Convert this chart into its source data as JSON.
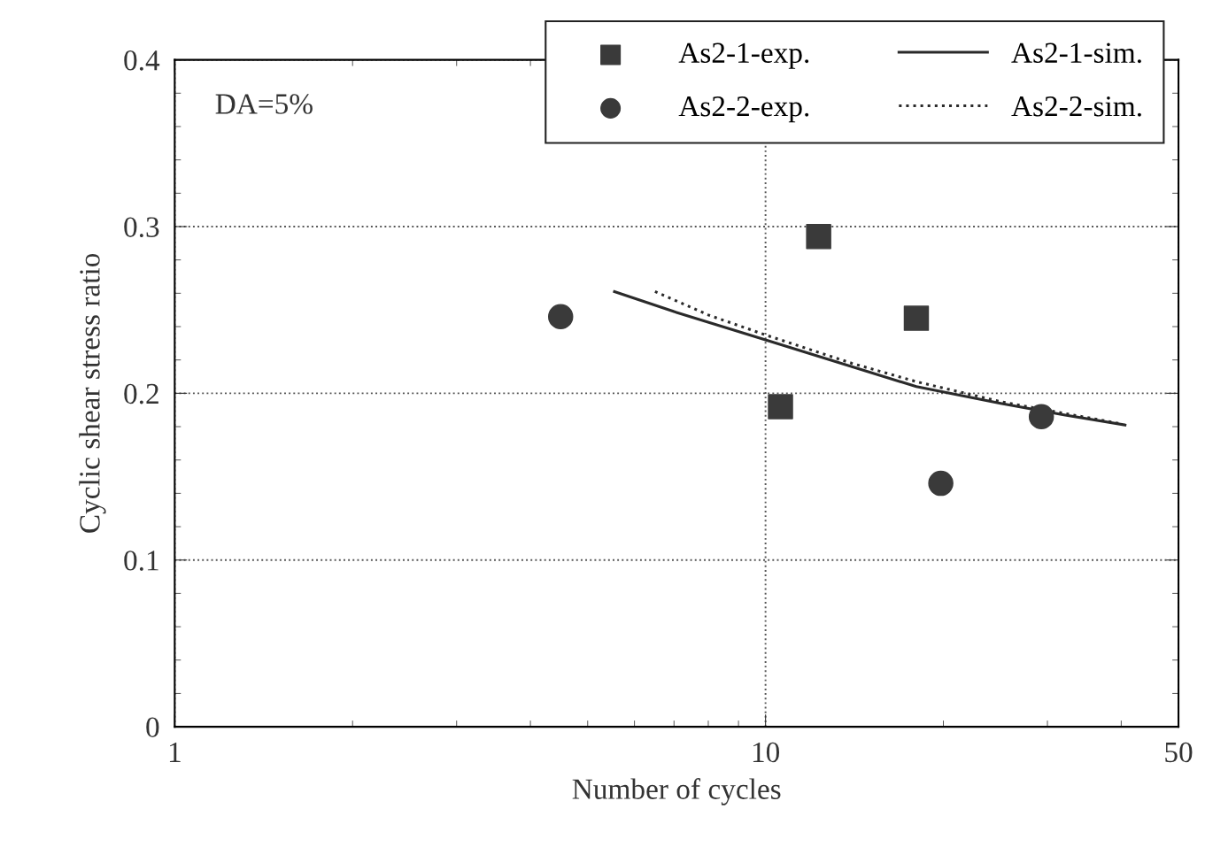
{
  "chart_data": {
    "type": "scatter",
    "xlabel": "Number of cycles",
    "ylabel": "Cyclic shear stress ratio",
    "annotations": [
      "DA=5%"
    ],
    "log": "x",
    "xlim": [
      1,
      50
    ],
    "xticks": [
      1,
      10,
      50
    ],
    "ylim": [
      0,
      0.4
    ],
    "yticks": [
      0,
      0.1,
      0.2,
      0.3,
      0.4
    ],
    "grid": true,
    "legend": "top right",
    "series": [
      {
        "name": "As2-1-exp.",
        "marker": "square",
        "color": "#3a3a3a",
        "x": [
          10.6,
          12.3,
          18.0
        ],
        "values": [
          0.192,
          0.294,
          0.245
        ]
      },
      {
        "name": "As2-2-exp.",
        "marker": "circle",
        "color": "#3a3a3a",
        "x": [
          4.5,
          19.8,
          29.3
        ],
        "values": [
          0.246,
          0.146,
          0.186
        ]
      },
      {
        "name": "As2-1-sim.",
        "type": "line",
        "line_style": "solid",
        "color": "#2a2a2a",
        "x": [
          5.55,
          7,
          10,
          14,
          18,
          25,
          32,
          40.6
        ],
        "values": [
          0.261,
          0.249,
          0.232,
          0.216,
          0.204,
          0.194,
          0.187,
          0.181
        ]
      },
      {
        "name": "As2-2-sim.",
        "type": "line",
        "line_style": "dotted",
        "color": "#2a2a2a",
        "x": [
          6.5,
          8,
          10,
          14,
          18,
          25,
          32,
          39.6
        ],
        "values": [
          0.261,
          0.247,
          0.235,
          0.218,
          0.207,
          0.195,
          0.188,
          0.182
        ]
      }
    ]
  }
}
